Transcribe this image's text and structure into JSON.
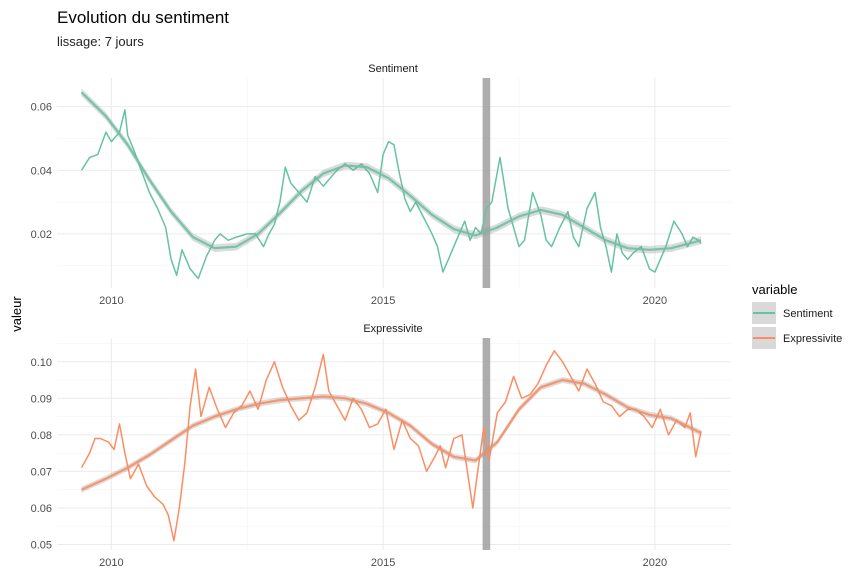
{
  "chart_data": {
    "type": "line",
    "title": "Evolution du sentiment",
    "subtitle": "lissage: 7 jours",
    "ylabel": "valeur",
    "xlabel": "",
    "x_ticks": [
      2010,
      2015,
      2020
    ],
    "xlim": [
      2009.0,
      2021.4
    ],
    "grid": true,
    "legend": {
      "title": "variable",
      "placement": "right",
      "entries": [
        "Sentiment",
        "Expressivite"
      ]
    },
    "highlight_band": {
      "from": 2016.83,
      "to": 2016.97,
      "color": "#999999"
    },
    "panels": [
      {
        "strip": "Sentiment",
        "color": "#66c2a5",
        "ylim": [
          0.003,
          0.069
        ],
        "y_ticks": [
          0.02,
          0.04,
          0.06
        ],
        "y_tick_labels": [
          "0.02",
          "0.04",
          "0.06"
        ],
        "series": {
          "name": "Sentiment",
          "x": [
            2009.45,
            2009.6,
            2009.75,
            2009.9,
            2010.0,
            2010.15,
            2010.25,
            2010.3,
            2010.4,
            2010.55,
            2010.7,
            2010.85,
            2011.0,
            2011.1,
            2011.2,
            2011.3,
            2011.45,
            2011.6,
            2011.75,
            2011.9,
            2012.0,
            2012.15,
            2012.3,
            2012.5,
            2012.65,
            2012.8,
            2012.9,
            2013.0,
            2013.1,
            2013.2,
            2013.3,
            2013.45,
            2013.6,
            2013.75,
            2013.9,
            2014.0,
            2014.15,
            2014.3,
            2014.45,
            2014.6,
            2014.75,
            2014.9,
            2015.0,
            2015.1,
            2015.2,
            2015.3,
            2015.4,
            2015.5,
            2015.6,
            2015.75,
            2015.9,
            2016.0,
            2016.1,
            2016.2,
            2016.3,
            2016.4,
            2016.5,
            2016.6,
            2016.7,
            2016.8,
            2016.9,
            2017.0,
            2017.15,
            2017.3,
            2017.4,
            2017.5,
            2017.6,
            2017.75,
            2017.9,
            2018.0,
            2018.1,
            2018.25,
            2018.4,
            2018.5,
            2018.6,
            2018.75,
            2018.9,
            2019.0,
            2019.1,
            2019.2,
            2019.3,
            2019.4,
            2019.5,
            2019.6,
            2019.75,
            2019.9,
            2020.0,
            2020.1,
            2020.2,
            2020.35,
            2020.5,
            2020.6,
            2020.7,
            2020.8,
            2020.85
          ],
          "y": [
            0.04,
            0.044,
            0.045,
            0.052,
            0.049,
            0.052,
            0.059,
            0.051,
            0.047,
            0.04,
            0.033,
            0.028,
            0.022,
            0.012,
            0.007,
            0.015,
            0.009,
            0.006,
            0.013,
            0.018,
            0.02,
            0.018,
            0.019,
            0.02,
            0.02,
            0.016,
            0.02,
            0.023,
            0.03,
            0.041,
            0.036,
            0.033,
            0.03,
            0.038,
            0.035,
            0.037,
            0.04,
            0.042,
            0.04,
            0.042,
            0.039,
            0.033,
            0.045,
            0.049,
            0.048,
            0.039,
            0.031,
            0.027,
            0.03,
            0.025,
            0.02,
            0.016,
            0.008,
            0.012,
            0.016,
            0.02,
            0.024,
            0.018,
            0.022,
            0.02,
            0.028,
            0.03,
            0.044,
            0.028,
            0.022,
            0.016,
            0.018,
            0.033,
            0.026,
            0.018,
            0.016,
            0.022,
            0.027,
            0.019,
            0.016,
            0.028,
            0.033,
            0.022,
            0.016,
            0.008,
            0.02,
            0.014,
            0.012,
            0.014,
            0.016,
            0.009,
            0.008,
            0.012,
            0.016,
            0.024,
            0.02,
            0.016,
            0.019,
            0.018,
            0.017
          ]
        },
        "smooth": {
          "x": [
            2009.45,
            2009.9,
            2010.3,
            2010.7,
            2011.1,
            2011.5,
            2011.9,
            2012.3,
            2012.7,
            2013.1,
            2013.5,
            2013.9,
            2014.3,
            2014.7,
            2015.1,
            2015.5,
            2015.9,
            2016.3,
            2016.7,
            2017.1,
            2017.5,
            2017.9,
            2018.3,
            2018.7,
            2019.1,
            2019.5,
            2019.9,
            2020.3,
            2020.85
          ],
          "y": [
            0.0645,
            0.057,
            0.048,
            0.037,
            0.027,
            0.019,
            0.0155,
            0.016,
            0.02,
            0.0265,
            0.0335,
            0.039,
            0.0415,
            0.041,
            0.0375,
            0.032,
            0.026,
            0.0215,
            0.0195,
            0.022,
            0.0255,
            0.0275,
            0.026,
            0.022,
            0.018,
            0.0155,
            0.015,
            0.0155,
            0.018
          ],
          "band": 0.0012
        }
      },
      {
        "strip": "Expressivite",
        "color": "#fc8d62",
        "ylim": [
          0.0485,
          0.1065
        ],
        "y_ticks": [
          0.05,
          0.06,
          0.07,
          0.08,
          0.09,
          0.1
        ],
        "y_tick_labels": [
          "0.05",
          "0.06",
          "0.07",
          "0.08",
          "0.09",
          "0.10"
        ],
        "series": {
          "name": "Expressivite",
          "x": [
            2009.45,
            2009.6,
            2009.7,
            2009.8,
            2009.95,
            2010.05,
            2010.15,
            2010.25,
            2010.35,
            2010.5,
            2010.65,
            2010.8,
            2010.95,
            2011.05,
            2011.15,
            2011.25,
            2011.35,
            2011.45,
            2011.55,
            2011.65,
            2011.8,
            2011.95,
            2012.1,
            2012.25,
            2012.4,
            2012.55,
            2012.7,
            2012.85,
            2013.0,
            2013.15,
            2013.3,
            2013.45,
            2013.6,
            2013.75,
            2013.9,
            2014.0,
            2014.15,
            2014.3,
            2014.45,
            2014.6,
            2014.75,
            2014.9,
            2015.05,
            2015.2,
            2015.35,
            2015.5,
            2015.65,
            2015.8,
            2015.95,
            2016.05,
            2016.15,
            2016.3,
            2016.45,
            2016.55,
            2016.65,
            2016.75,
            2016.85,
            2016.95,
            2017.1,
            2017.25,
            2017.4,
            2017.55,
            2017.7,
            2017.85,
            2018.0,
            2018.15,
            2018.3,
            2018.45,
            2018.6,
            2018.75,
            2018.9,
            2019.05,
            2019.2,
            2019.35,
            2019.5,
            2019.65,
            2019.8,
            2019.95,
            2020.1,
            2020.25,
            2020.4,
            2020.55,
            2020.65,
            2020.75,
            2020.85
          ],
          "y": [
            0.071,
            0.075,
            0.079,
            0.079,
            0.078,
            0.076,
            0.083,
            0.075,
            0.068,
            0.072,
            0.066,
            0.063,
            0.061,
            0.058,
            0.051,
            0.06,
            0.072,
            0.088,
            0.098,
            0.085,
            0.093,
            0.087,
            0.082,
            0.086,
            0.088,
            0.092,
            0.087,
            0.095,
            0.1,
            0.093,
            0.088,
            0.084,
            0.086,
            0.093,
            0.102,
            0.092,
            0.088,
            0.084,
            0.09,
            0.087,
            0.082,
            0.083,
            0.087,
            0.076,
            0.084,
            0.079,
            0.077,
            0.07,
            0.074,
            0.077,
            0.071,
            0.079,
            0.08,
            0.07,
            0.06,
            0.071,
            0.082,
            0.073,
            0.086,
            0.089,
            0.096,
            0.09,
            0.091,
            0.094,
            0.099,
            0.103,
            0.1,
            0.096,
            0.092,
            0.098,
            0.094,
            0.089,
            0.088,
            0.085,
            0.087,
            0.087,
            0.085,
            0.082,
            0.087,
            0.08,
            0.084,
            0.082,
            0.086,
            0.074,
            0.081
          ]
        },
        "smooth": {
          "x": [
            2009.45,
            2009.9,
            2010.3,
            2010.7,
            2011.1,
            2011.5,
            2011.9,
            2012.3,
            2012.7,
            2013.1,
            2013.5,
            2013.9,
            2014.3,
            2014.7,
            2015.1,
            2015.5,
            2015.9,
            2016.3,
            2016.7,
            2017.1,
            2017.5,
            2017.9,
            2018.3,
            2018.7,
            2019.1,
            2019.5,
            2019.9,
            2020.3,
            2020.85
          ],
          "y": [
            0.065,
            0.068,
            0.071,
            0.0745,
            0.0785,
            0.0825,
            0.085,
            0.087,
            0.0885,
            0.0895,
            0.09,
            0.0905,
            0.09,
            0.0885,
            0.086,
            0.0825,
            0.0775,
            0.074,
            0.073,
            0.078,
            0.087,
            0.093,
            0.095,
            0.094,
            0.091,
            0.0875,
            0.0855,
            0.0845,
            0.0805
          ],
          "band": 0.0008
        }
      }
    ]
  }
}
